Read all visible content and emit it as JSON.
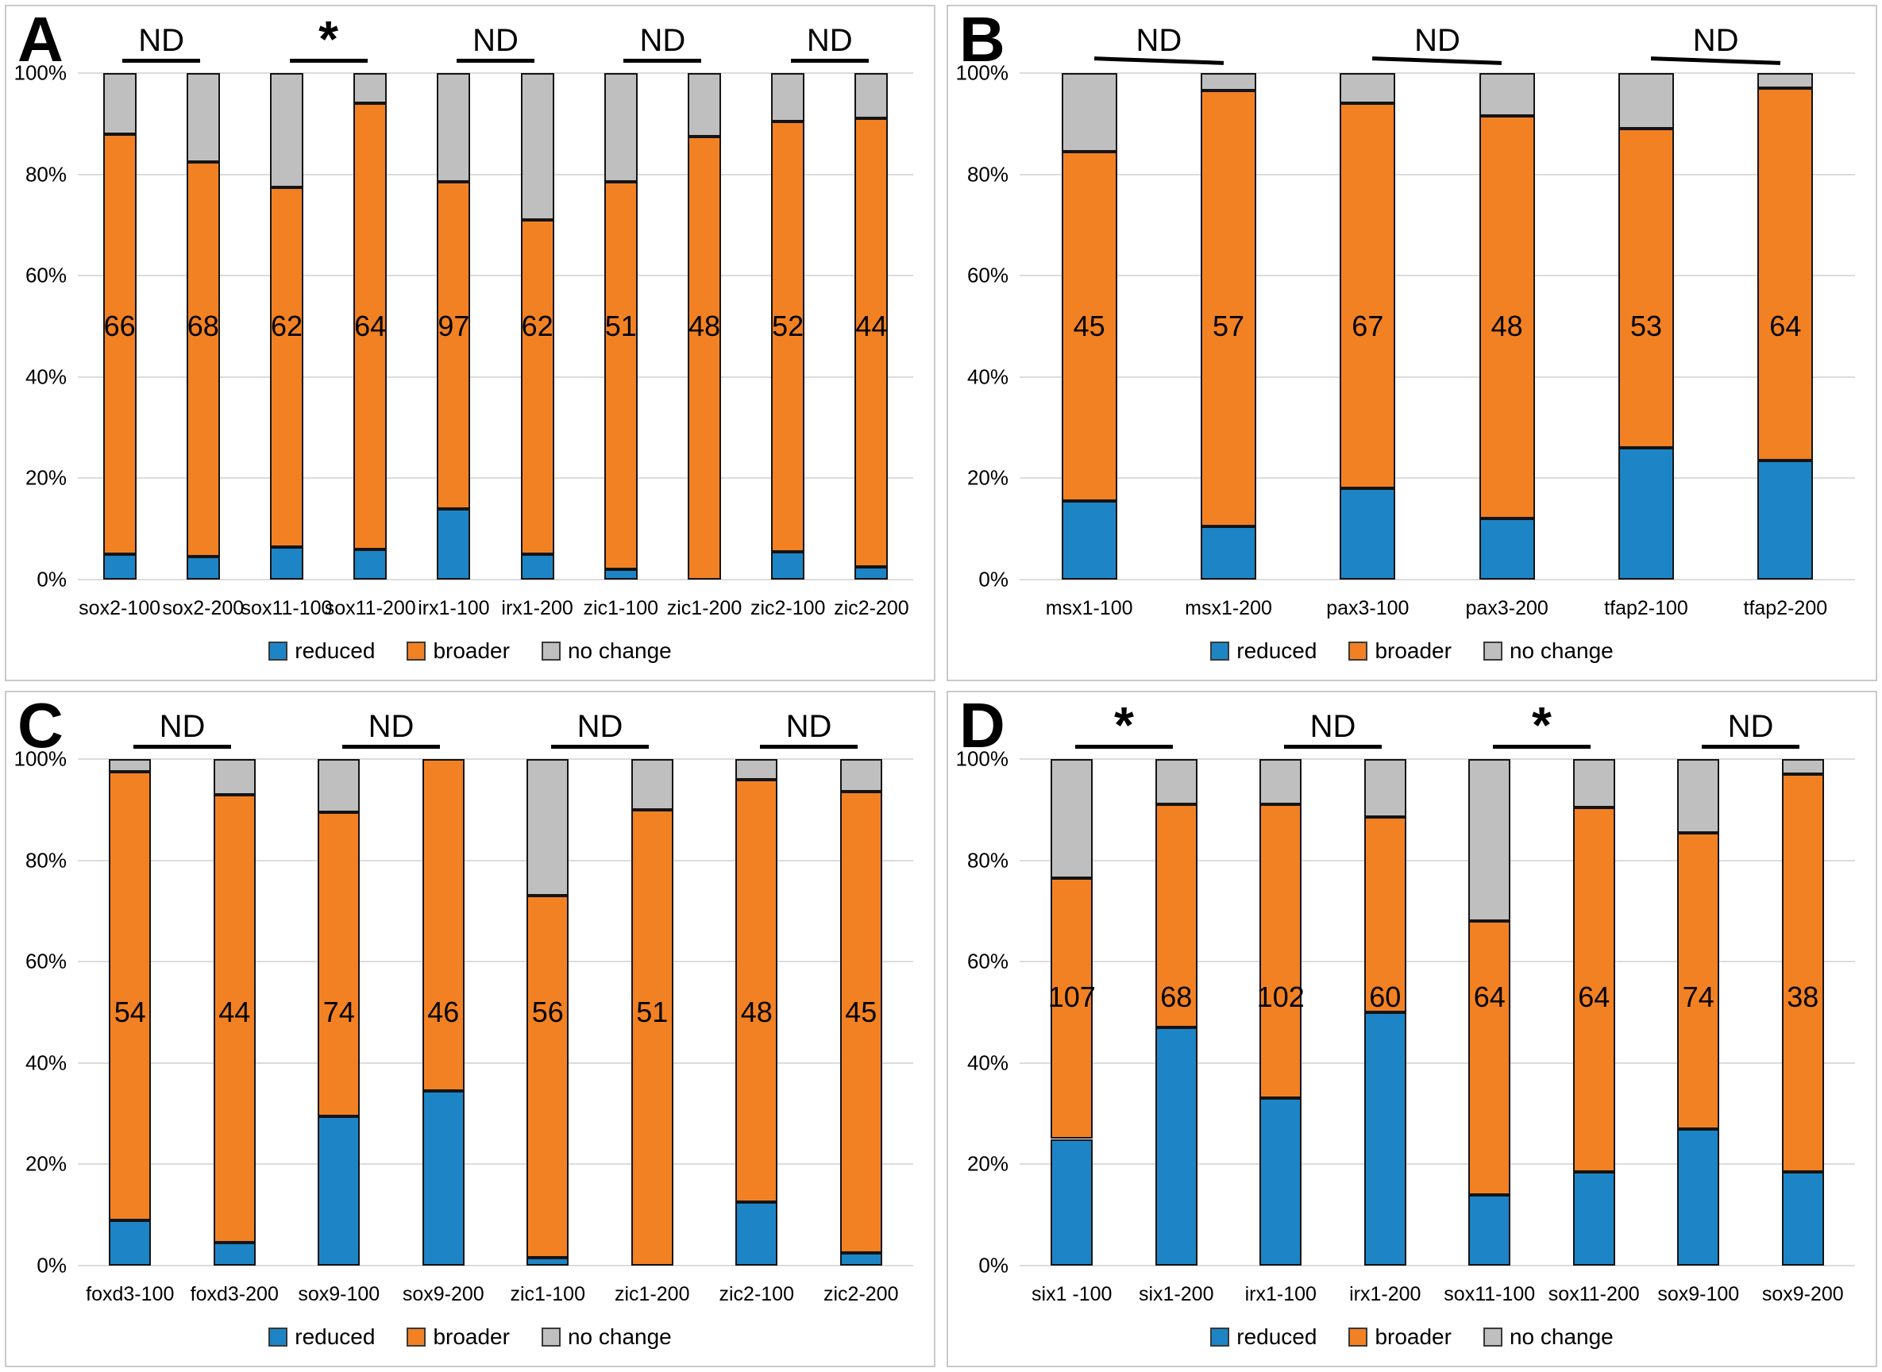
{
  "figure": {
    "panels": [
      "A",
      "B",
      "C",
      "D"
    ]
  },
  "colors": {
    "reduced": "#1d85c6",
    "broader": "#f28124",
    "no_change": "#bfbfbf"
  },
  "chart_data": [
    {
      "panel": "A",
      "type": "bar",
      "stacked": true,
      "ylim": [
        0,
        100
      ],
      "grid": true,
      "legend_position": "bottom",
      "y_ticks": [
        "100%",
        "80%",
        "60%",
        "40%",
        "20%",
        "0%"
      ],
      "categories": [
        "sox2-100",
        "sox2-200",
        "sox11-100",
        "sox11-200",
        "irx1-100",
        "irx1-200",
        "zic1-100",
        "zic1-200",
        "zic2-100",
        "zic2-200"
      ],
      "series": [
        {
          "name": "reduced",
          "color": "#1d85c6",
          "values": [
            5,
            4.5,
            6.5,
            6,
            14,
            5,
            2,
            0,
            5.5,
            2.5
          ]
        },
        {
          "name": "broader",
          "color": "#f28124",
          "values": [
            83,
            78,
            71,
            88,
            64.5,
            66,
            76.5,
            87.5,
            85,
            88.5
          ]
        },
        {
          "name": "no change",
          "color": "#bfbfbf",
          "values": [
            12,
            17.5,
            22.5,
            6,
            21.5,
            29,
            21.5,
            12.5,
            9.5,
            9
          ]
        }
      ],
      "bar_counts": [
        66,
        68,
        62,
        64,
        97,
        62,
        51,
        48,
        52,
        44
      ],
      "count_label_y": 50,
      "annotations": [
        {
          "text": "ND",
          "bars": [
            0,
            1
          ]
        },
        {
          "text": "*",
          "bars": [
            2,
            3
          ]
        },
        {
          "text": "ND",
          "bars": [
            4,
            5
          ]
        },
        {
          "text": "ND",
          "bars": [
            6,
            7
          ]
        },
        {
          "text": "ND",
          "bars": [
            8,
            9
          ]
        }
      ],
      "annotation_tilt_deg": 0
    },
    {
      "panel": "B",
      "type": "bar",
      "stacked": true,
      "ylim": [
        0,
        100
      ],
      "grid": true,
      "legend_position": "bottom",
      "y_ticks": [
        "100%",
        "80%",
        "60%",
        "40%",
        "20%",
        "0%"
      ],
      "categories": [
        "msx1-100",
        "msx1-200",
        "pax3-100",
        "pax3-200",
        "tfap2-100",
        "tfap2-200"
      ],
      "series": [
        {
          "name": "reduced",
          "color": "#1d85c6",
          "values": [
            15.5,
            10.5,
            18,
            12,
            26,
            23.5
          ]
        },
        {
          "name": "broader",
          "color": "#f28124",
          "values": [
            69,
            86,
            76,
            79.5,
            63,
            73.5
          ]
        },
        {
          "name": "no change",
          "color": "#bfbfbf",
          "values": [
            15.5,
            3.5,
            6,
            8.5,
            11,
            3
          ]
        }
      ],
      "bar_counts": [
        45,
        57,
        67,
        48,
        53,
        64
      ],
      "count_label_y": 50,
      "annotations": [
        {
          "text": "ND",
          "bars": [
            0,
            1
          ]
        },
        {
          "text": "ND",
          "bars": [
            2,
            3
          ]
        },
        {
          "text": "ND",
          "bars": [
            4,
            5
          ]
        }
      ],
      "annotation_tilt_deg": 2
    },
    {
      "panel": "C",
      "type": "bar",
      "stacked": true,
      "ylim": [
        0,
        100
      ],
      "grid": true,
      "legend_position": "bottom",
      "y_ticks": [
        "100%",
        "80%",
        "60%",
        "40%",
        "20%",
        "0%"
      ],
      "categories": [
        "foxd3-100",
        "foxd3-200",
        "sox9-100",
        "sox9-200",
        "zic1-100",
        "zic1-200",
        "zic2-100",
        "zic2-200"
      ],
      "series": [
        {
          "name": "reduced",
          "color": "#1d85c6",
          "values": [
            9,
            4.5,
            29.5,
            34.5,
            1.5,
            0,
            12.5,
            2.5
          ]
        },
        {
          "name": "broader",
          "color": "#f28124",
          "values": [
            88.5,
            88.5,
            60,
            65.5,
            71.5,
            90,
            83.5,
            91
          ]
        },
        {
          "name": "no change",
          "color": "#bfbfbf",
          "values": [
            2.5,
            7,
            10.5,
            0,
            27,
            10,
            4,
            6.5
          ]
        }
      ],
      "bar_counts": [
        54,
        44,
        74,
        46,
        56,
        51,
        48,
        45
      ],
      "count_label_y": 50,
      "annotations": [
        {
          "text": "ND",
          "bars": [
            0,
            1
          ]
        },
        {
          "text": "ND",
          "bars": [
            2,
            3
          ]
        },
        {
          "text": "ND",
          "bars": [
            4,
            5
          ]
        },
        {
          "text": "ND",
          "bars": [
            6,
            7
          ]
        }
      ],
      "annotation_tilt_deg": 0
    },
    {
      "panel": "D",
      "type": "bar",
      "stacked": true,
      "ylim": [
        0,
        100
      ],
      "grid": true,
      "legend_position": "bottom",
      "y_ticks": [
        "100%",
        "80%",
        "60%",
        "40%",
        "20%",
        "0%"
      ],
      "categories": [
        "six1 -100",
        "six1-200",
        "irx1-100",
        "irx1-200",
        "sox11-100",
        "sox11-200",
        "sox9-100",
        "sox9-200"
      ],
      "series": [
        {
          "name": "reduced",
          "color": "#1d85c6",
          "values": [
            25,
            47,
            33,
            50,
            14,
            18.5,
            27,
            18.5
          ]
        },
        {
          "name": "broader",
          "color": "#f28124",
          "values": [
            51.5,
            44,
            58,
            38.5,
            54,
            72,
            58.5,
            78.5
          ]
        },
        {
          "name": "no change",
          "color": "#bfbfbf",
          "values": [
            23.5,
            9,
            9,
            11.5,
            32,
            9.5,
            14.5,
            3
          ]
        }
      ],
      "bar_counts": [
        107,
        68,
        102,
        60,
        64,
        64,
        74,
        38
      ],
      "count_label_y": 53,
      "annotations": [
        {
          "text": "*",
          "bars": [
            0,
            1
          ]
        },
        {
          "text": "ND",
          "bars": [
            2,
            3
          ]
        },
        {
          "text": "*",
          "bars": [
            4,
            5
          ]
        },
        {
          "text": "ND",
          "bars": [
            6,
            7
          ]
        }
      ],
      "annotation_tilt_deg": 0
    }
  ]
}
